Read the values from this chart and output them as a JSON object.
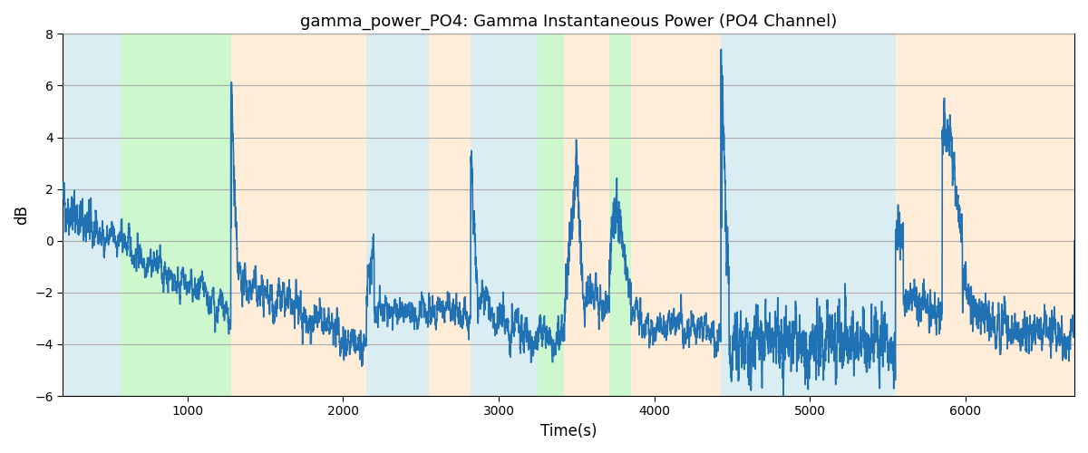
{
  "title": "gamma_power_PO4: Gamma Instantaneous Power (PO4 Channel)",
  "xlabel": "Time(s)",
  "ylabel": "dB",
  "xlim": [
    200,
    6700
  ],
  "ylim": [
    -6,
    8
  ],
  "yticks": [
    -6,
    -4,
    -2,
    0,
    2,
    4,
    6,
    8
  ],
  "line_color": "#2171b5",
  "line_width": 1.2,
  "background_color": "#ffffff",
  "grid_color": "#aaaaaa",
  "bands": [
    {
      "xmin": 200,
      "xmax": 570,
      "color": "#add8e6",
      "alpha": 0.45
    },
    {
      "xmin": 570,
      "xmax": 1280,
      "color": "#90ee90",
      "alpha": 0.45
    },
    {
      "xmin": 1280,
      "xmax": 2150,
      "color": "#ffd8a8",
      "alpha": 0.45
    },
    {
      "xmin": 2150,
      "xmax": 2550,
      "color": "#add8e6",
      "alpha": 0.45
    },
    {
      "xmin": 2550,
      "xmax": 2820,
      "color": "#ffd8a8",
      "alpha": 0.45
    },
    {
      "xmin": 2820,
      "xmax": 3250,
      "color": "#add8e6",
      "alpha": 0.45
    },
    {
      "xmin": 3250,
      "xmax": 3420,
      "color": "#90ee90",
      "alpha": 0.45
    },
    {
      "xmin": 3420,
      "xmax": 3710,
      "color": "#ffd8a8",
      "alpha": 0.45
    },
    {
      "xmin": 3710,
      "xmax": 3850,
      "color": "#90ee90",
      "alpha": 0.45
    },
    {
      "xmin": 3850,
      "xmax": 4430,
      "color": "#ffd8a8",
      "alpha": 0.45
    },
    {
      "xmin": 4430,
      "xmax": 5550,
      "color": "#add8e6",
      "alpha": 0.45
    },
    {
      "xmin": 5550,
      "xmax": 5850,
      "color": "#ffd8a8",
      "alpha": 0.45
    },
    {
      "xmin": 5850,
      "xmax": 6700,
      "color": "#ffd8a8",
      "alpha": 0.45
    }
  ],
  "seed": 42,
  "n_points": 6500,
  "t_start": 200,
  "t_end": 6700
}
